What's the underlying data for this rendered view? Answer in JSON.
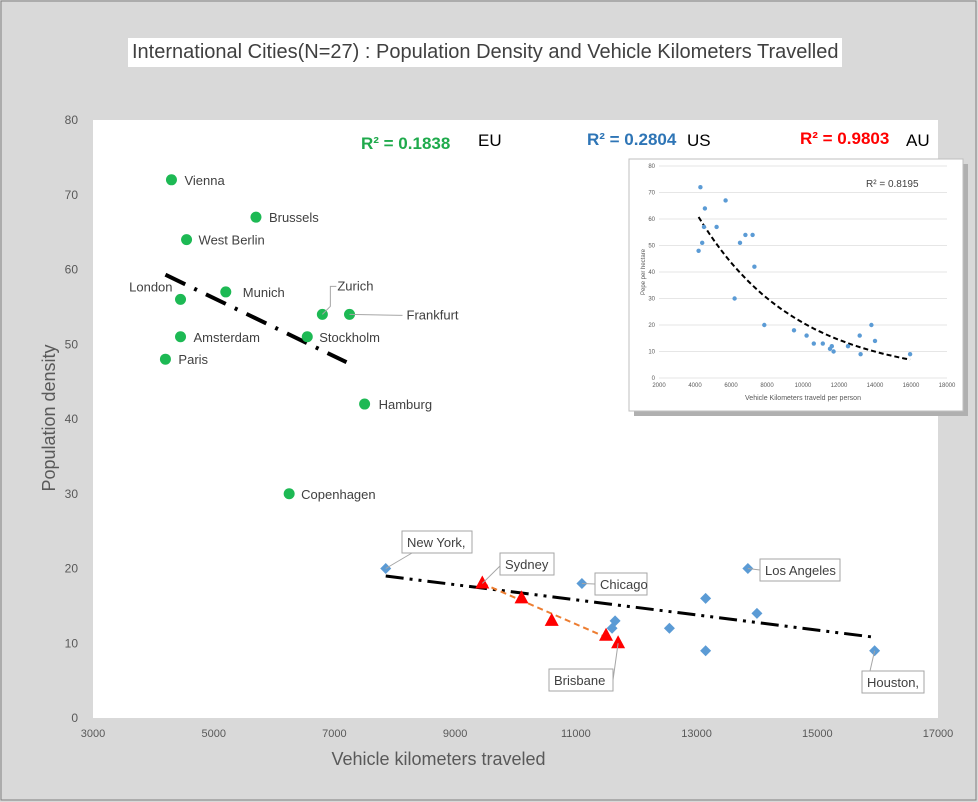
{
  "title": "International Cities(N=27) : Population Density and Vehicle Kilometers Travelled",
  "colors": {
    "eu": "#1db954",
    "us": "#5b9bd5",
    "au": "#ff0000",
    "au_trend": "#ed7d31",
    "eu_r2": "#1faa4c",
    "us_r2": "#2e75b6"
  },
  "chart_data": [
    {
      "type": "scatter",
      "title": "International Cities(N=27) : Population Density and Vehicle Kilometers Travelled",
      "xlabel": "Vehicle kilometers traveled",
      "ylabel": "Population density",
      "xlim": [
        3000,
        17000
      ],
      "ylim": [
        0,
        80
      ],
      "xticks": [
        3000,
        5000,
        7000,
        9000,
        11000,
        13000,
        15000,
        17000
      ],
      "yticks": [
        0,
        10,
        20,
        30,
        40,
        50,
        60,
        70,
        80
      ],
      "grid": false,
      "annotations": [
        {
          "r2": "R² = 0.1838",
          "group": "EU"
        },
        {
          "r2": "R² = 0.2804",
          "group": "US"
        },
        {
          "r2": "R² = 0.9803",
          "group": "AU"
        }
      ],
      "series": [
        {
          "group": "EU",
          "points": [
            {
              "x": 4300,
              "y": 72,
              "label": "Vienna"
            },
            {
              "x": 5700,
              "y": 67,
              "label": "Brussels"
            },
            {
              "x": 4550,
              "y": 64,
              "label": "West Berlin"
            },
            {
              "x": 5200,
              "y": 57,
              "label": "Munich"
            },
            {
              "x": 4450,
              "y": 56,
              "label": "London"
            },
            {
              "x": 6800,
              "y": 54,
              "label": "Zurich"
            },
            {
              "x": 7250,
              "y": 54,
              "label": "Frankfurt"
            },
            {
              "x": 4450,
              "y": 51,
              "label": "Amsterdam"
            },
            {
              "x": 6550,
              "y": 51,
              "label": "Stockholm"
            },
            {
              "x": 4200,
              "y": 48,
              "label": "Paris"
            },
            {
              "x": 7500,
              "y": 42,
              "label": "Hamburg"
            },
            {
              "x": 6250,
              "y": 30,
              "label": "Copenhagen"
            }
          ],
          "trend": [
            [
              4200,
              59.3
            ],
            [
              7200,
              47.6
            ]
          ]
        },
        {
          "group": "US",
          "points": [
            {
              "x": 7850,
              "y": 20,
              "label": "New York,"
            },
            {
              "x": 11100,
              "y": 18,
              "label": "Chicago"
            },
            {
              "x": 13850,
              "y": 20,
              "label": "Los Angeles"
            },
            {
              "x": 15950,
              "y": 9,
              "label": "Houston,"
            },
            {
              "x": 11650,
              "y": 13,
              "label": ""
            },
            {
              "x": 11600,
              "y": 12,
              "label": ""
            },
            {
              "x": 12550,
              "y": 12,
              "label": ""
            },
            {
              "x": 13150,
              "y": 16,
              "label": ""
            },
            {
              "x": 13150,
              "y": 9,
              "label": ""
            },
            {
              "x": 14000,
              "y": 14,
              "label": ""
            }
          ],
          "trend": [
            [
              7850,
              19
            ],
            [
              15950,
              10.8
            ]
          ]
        },
        {
          "group": "AU",
          "points": [
            {
              "x": 9450,
              "y": 18,
              "label": "Sydney"
            },
            {
              "x": 10100,
              "y": 16,
              "label": ""
            },
            {
              "x": 10600,
              "y": 13,
              "label": ""
            },
            {
              "x": 11500,
              "y": 11,
              "label": ""
            },
            {
              "x": 11700,
              "y": 10,
              "label": "Brisbane"
            }
          ],
          "trend": [
            [
              9450,
              18
            ],
            [
              11500,
              10.8
            ]
          ]
        }
      ]
    },
    {
      "type": "scatter",
      "xlabel": "Vehicle Kilometers traveld per person",
      "ylabel": "Pepe per hectare",
      "xlim": [
        2000,
        18000
      ],
      "ylim": [
        0,
        80
      ],
      "xticks": [
        2000,
        4000,
        6000,
        8000,
        10000,
        12000,
        14000,
        16000,
        18000
      ],
      "yticks": [
        0,
        10,
        20,
        30,
        40,
        50,
        60,
        70,
        80
      ],
      "grid": true,
      "annotation": "R² = 0.8195",
      "x": [
        4200,
        4300,
        4400,
        4500,
        4550,
        5200,
        5700,
        6200,
        6500,
        6800,
        7200,
        7300,
        7850,
        9500,
        10200,
        10600,
        11100,
        11500,
        11600,
        11700,
        12500,
        13150,
        13200,
        13800,
        14000,
        15950
      ],
      "y": [
        48,
        72,
        51,
        57,
        64,
        57,
        67,
        30,
        51,
        54,
        54,
        42,
        20,
        18,
        16,
        13,
        13,
        11,
        12,
        10,
        12,
        16,
        9,
        20,
        14,
        9
      ],
      "trend": "exponential"
    }
  ]
}
